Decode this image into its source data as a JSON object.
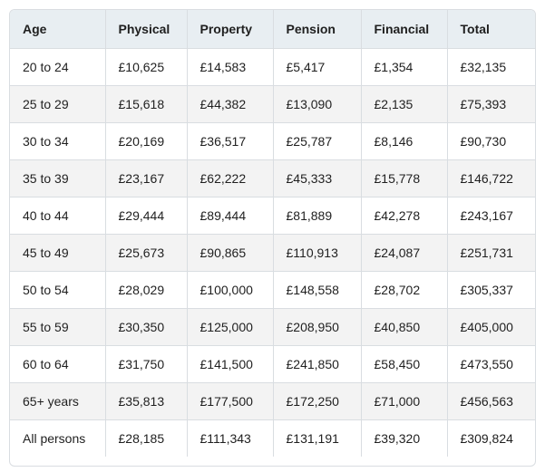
{
  "table": {
    "header": [
      "Age",
      "Physical",
      "Property",
      "Pension",
      "Financial",
      "Total"
    ],
    "rows": [
      [
        "20 to 24",
        "£10,625",
        "£14,583",
        "£5,417",
        "£1,354",
        "£32,135"
      ],
      [
        "25 to 29",
        "£15,618",
        "£44,382",
        "£13,090",
        "£2,135",
        "£75,393"
      ],
      [
        "30 to 34",
        "£20,169",
        "£36,517",
        "£25,787",
        "£8,146",
        "£90,730"
      ],
      [
        "35 to 39",
        "£23,167",
        "£62,222",
        "£45,333",
        "£15,778",
        "£146,722"
      ],
      [
        "40 to 44",
        "£29,444",
        "£89,444",
        "£81,889",
        "£42,278",
        "£243,167"
      ],
      [
        "45 to 49",
        "£25,673",
        "£90,865",
        "£110,913",
        "£24,087",
        "£251,731"
      ],
      [
        "50 to 54",
        "£28,029",
        "£100,000",
        "£148,558",
        "£28,702",
        "£305,337"
      ],
      [
        "55 to 59",
        "£30,350",
        "£125,000",
        "£208,950",
        "£40,850",
        "£405,000"
      ],
      [
        "60 to 64",
        "£31,750",
        "£141,500",
        "£241,850",
        "£58,450",
        "£473,550"
      ],
      [
        "65+ years",
        "£35,813",
        "£177,500",
        "£172,250",
        "£71,000",
        "£456,563"
      ],
      [
        "All persons",
        "£28,185",
        "£111,343",
        "£131,191",
        "£39,320",
        "£309,824"
      ]
    ]
  }
}
